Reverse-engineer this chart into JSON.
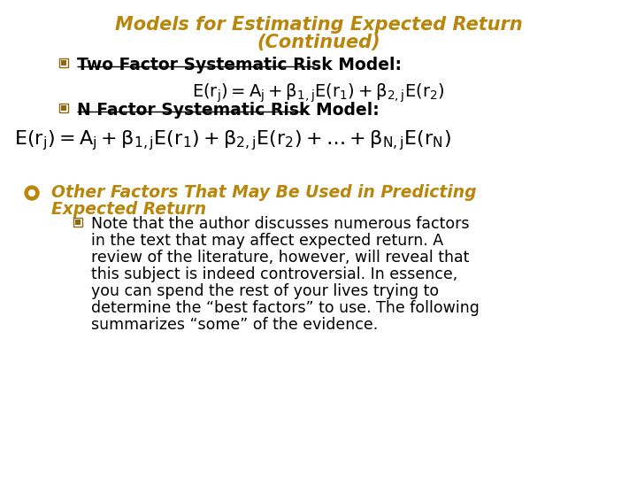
{
  "title_line1": "Models for Estimating Expected Return",
  "title_line2": "(Continued)",
  "title_color": "#B8860B",
  "title_fontsize": 15,
  "bg_color": "#FFFFFF",
  "bullet1_text": "Two Factor Systematic Risk Model:",
  "bullet2_text": "N Factor Systematic Risk Model:",
  "bullet_color": "#000000",
  "bullet_fontsize": 13.5,
  "formula_color": "#000000",
  "formula1_fontsize": 14,
  "formula2_fontsize": 16,
  "main_bullet_text_line1": "Other Factors That May Be Used in Predicting",
  "main_bullet_text_line2": "Expected Return",
  "main_bullet_color": "#B8860B",
  "main_bullet_fontsize": 13.5,
  "sub_bullet_text_lines": [
    "Note that the author discusses numerous factors",
    "in the text that may affect expected return. A",
    "review of the literature, however, will reveal that",
    "this subject is indeed controversial. In essence,",
    "you can spend the rest of your lives trying to",
    "determine the “best factors” to use. The following",
    "summarizes “some” of the evidence."
  ],
  "sub_bullet_color": "#000000",
  "sub_bullet_fontsize": 12.5,
  "small_bullet_color": "#8B6914",
  "main_bullet_symbol_color": "#B8860B"
}
